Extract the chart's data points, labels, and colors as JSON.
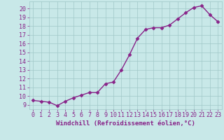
{
  "x": [
    0,
    1,
    2,
    3,
    4,
    5,
    6,
    7,
    8,
    9,
    10,
    11,
    12,
    13,
    14,
    15,
    16,
    17,
    18,
    19,
    20,
    21,
    22,
    23
  ],
  "y": [
    9.5,
    9.4,
    9.3,
    8.9,
    9.4,
    9.8,
    10.1,
    10.4,
    10.4,
    11.4,
    11.6,
    13.0,
    14.7,
    16.6,
    17.6,
    17.8,
    17.8,
    18.1,
    18.8,
    19.5,
    20.1,
    20.3,
    19.3,
    18.5
  ],
  "line_color": "#882288",
  "marker": "D",
  "marker_size": 2.5,
  "linewidth": 1.0,
  "bg_color": "#c8e8e8",
  "grid_color": "#a0c8c8",
  "xlabel": "Windchill (Refroidissement éolien,°C)",
  "xlabel_color": "#882288",
  "xlabel_fontsize": 6.5,
  "tick_label_color": "#882288",
  "tick_fontsize": 6,
  "ylim": [
    8.5,
    20.8
  ],
  "xlim": [
    -0.5,
    23.5
  ],
  "yticks": [
    9,
    10,
    11,
    12,
    13,
    14,
    15,
    16,
    17,
    18,
    19,
    20
  ],
  "xticks": [
    0,
    1,
    2,
    3,
    4,
    5,
    6,
    7,
    8,
    9,
    10,
    11,
    12,
    13,
    14,
    15,
    16,
    17,
    18,
    19,
    20,
    21,
    22,
    23
  ]
}
